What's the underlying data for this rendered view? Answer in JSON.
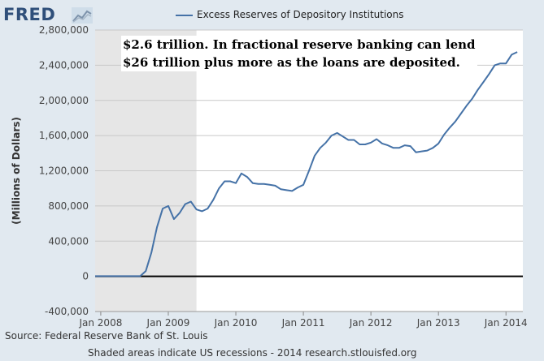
{
  "header": {
    "logo_text": "FRED",
    "logo_icon": "line-chart-icon"
  },
  "colors": {
    "background": "#e1e9f0",
    "plot_background": "#ffffff",
    "series": "#4572a7",
    "recession_shade": "#e6e6e6",
    "zero_line": "#000000",
    "grid": "#c8c8c8",
    "logo": "#2f4f7a"
  },
  "annotation": {
    "line1": "$2.6 trillion. In fractional reserve banking can lend",
    "line2": "$26 trillion plus more as the loans are deposited."
  },
  "footer": {
    "source": "Source: Federal Reserve Bank of St. Louis",
    "note": "Shaded areas indicate US recessions - 2014 research.stlouisfed.org"
  },
  "chart_data": {
    "type": "line",
    "title": "",
    "xlabel": "",
    "ylabel": "(Millions of Dollars)",
    "legend": [
      "Excess Reserves of Depository Institutions"
    ],
    "legend_position": "top",
    "grid": true,
    "ylim": [
      -400000,
      2800000
    ],
    "xlim": [
      "2007-12",
      "2014-04"
    ],
    "y_ticks": [
      "-400,000",
      "0",
      "400,000",
      "800,000",
      "1,200,000",
      "1,600,000",
      "2,000,000",
      "2,400,000",
      "2,800,000"
    ],
    "x_ticks": [
      "Jan 2008",
      "Jan 2009",
      "Jan 2010",
      "Jan 2011",
      "Jan 2012",
      "Jan 2013",
      "Jan 2014"
    ],
    "recession_shading": [
      [
        "2007-12",
        "2009-06"
      ]
    ],
    "series": [
      {
        "name": "Excess Reserves of Depository Institutions",
        "x": [
          "2007-12",
          "2008-01",
          "2008-02",
          "2008-03",
          "2008-04",
          "2008-05",
          "2008-06",
          "2008-07",
          "2008-08",
          "2008-09",
          "2008-10",
          "2008-11",
          "2008-12",
          "2009-01",
          "2009-02",
          "2009-03",
          "2009-04",
          "2009-05",
          "2009-06",
          "2009-07",
          "2009-08",
          "2009-09",
          "2009-10",
          "2009-11",
          "2009-12",
          "2010-01",
          "2010-02",
          "2010-03",
          "2010-04",
          "2010-05",
          "2010-06",
          "2010-07",
          "2010-08",
          "2010-09",
          "2010-10",
          "2010-11",
          "2010-12",
          "2011-01",
          "2011-02",
          "2011-03",
          "2011-04",
          "2011-05",
          "2011-06",
          "2011-07",
          "2011-08",
          "2011-09",
          "2011-10",
          "2011-11",
          "2011-12",
          "2012-01",
          "2012-02",
          "2012-03",
          "2012-04",
          "2012-05",
          "2012-06",
          "2012-07",
          "2012-08",
          "2012-09",
          "2012-10",
          "2012-11",
          "2012-12",
          "2013-01",
          "2013-02",
          "2013-03",
          "2013-04",
          "2013-05",
          "2013-06",
          "2013-07",
          "2013-08",
          "2013-09",
          "2013-10",
          "2013-11",
          "2013-12",
          "2014-01",
          "2014-02",
          "2014-03"
        ],
        "values": [
          2000,
          2000,
          2000,
          2000,
          2000,
          2000,
          2000,
          2000,
          2000,
          60000,
          270000,
          560000,
          770000,
          800000,
          650000,
          720000,
          820000,
          850000,
          760000,
          740000,
          770000,
          870000,
          1000000,
          1080000,
          1080000,
          1060000,
          1170000,
          1130000,
          1060000,
          1050000,
          1050000,
          1040000,
          1030000,
          990000,
          980000,
          970000,
          1010000,
          1040000,
          1200000,
          1370000,
          1460000,
          1520000,
          1600000,
          1630000,
          1590000,
          1550000,
          1550000,
          1500000,
          1500000,
          1520000,
          1560000,
          1510000,
          1490000,
          1460000,
          1460000,
          1490000,
          1480000,
          1410000,
          1420000,
          1430000,
          1460000,
          1510000,
          1610000,
          1690000,
          1760000,
          1850000,
          1940000,
          2020000,
          2120000,
          2210000,
          2300000,
          2400000,
          2420000,
          2420000,
          2520000,
          2550000
        ]
      }
    ]
  }
}
